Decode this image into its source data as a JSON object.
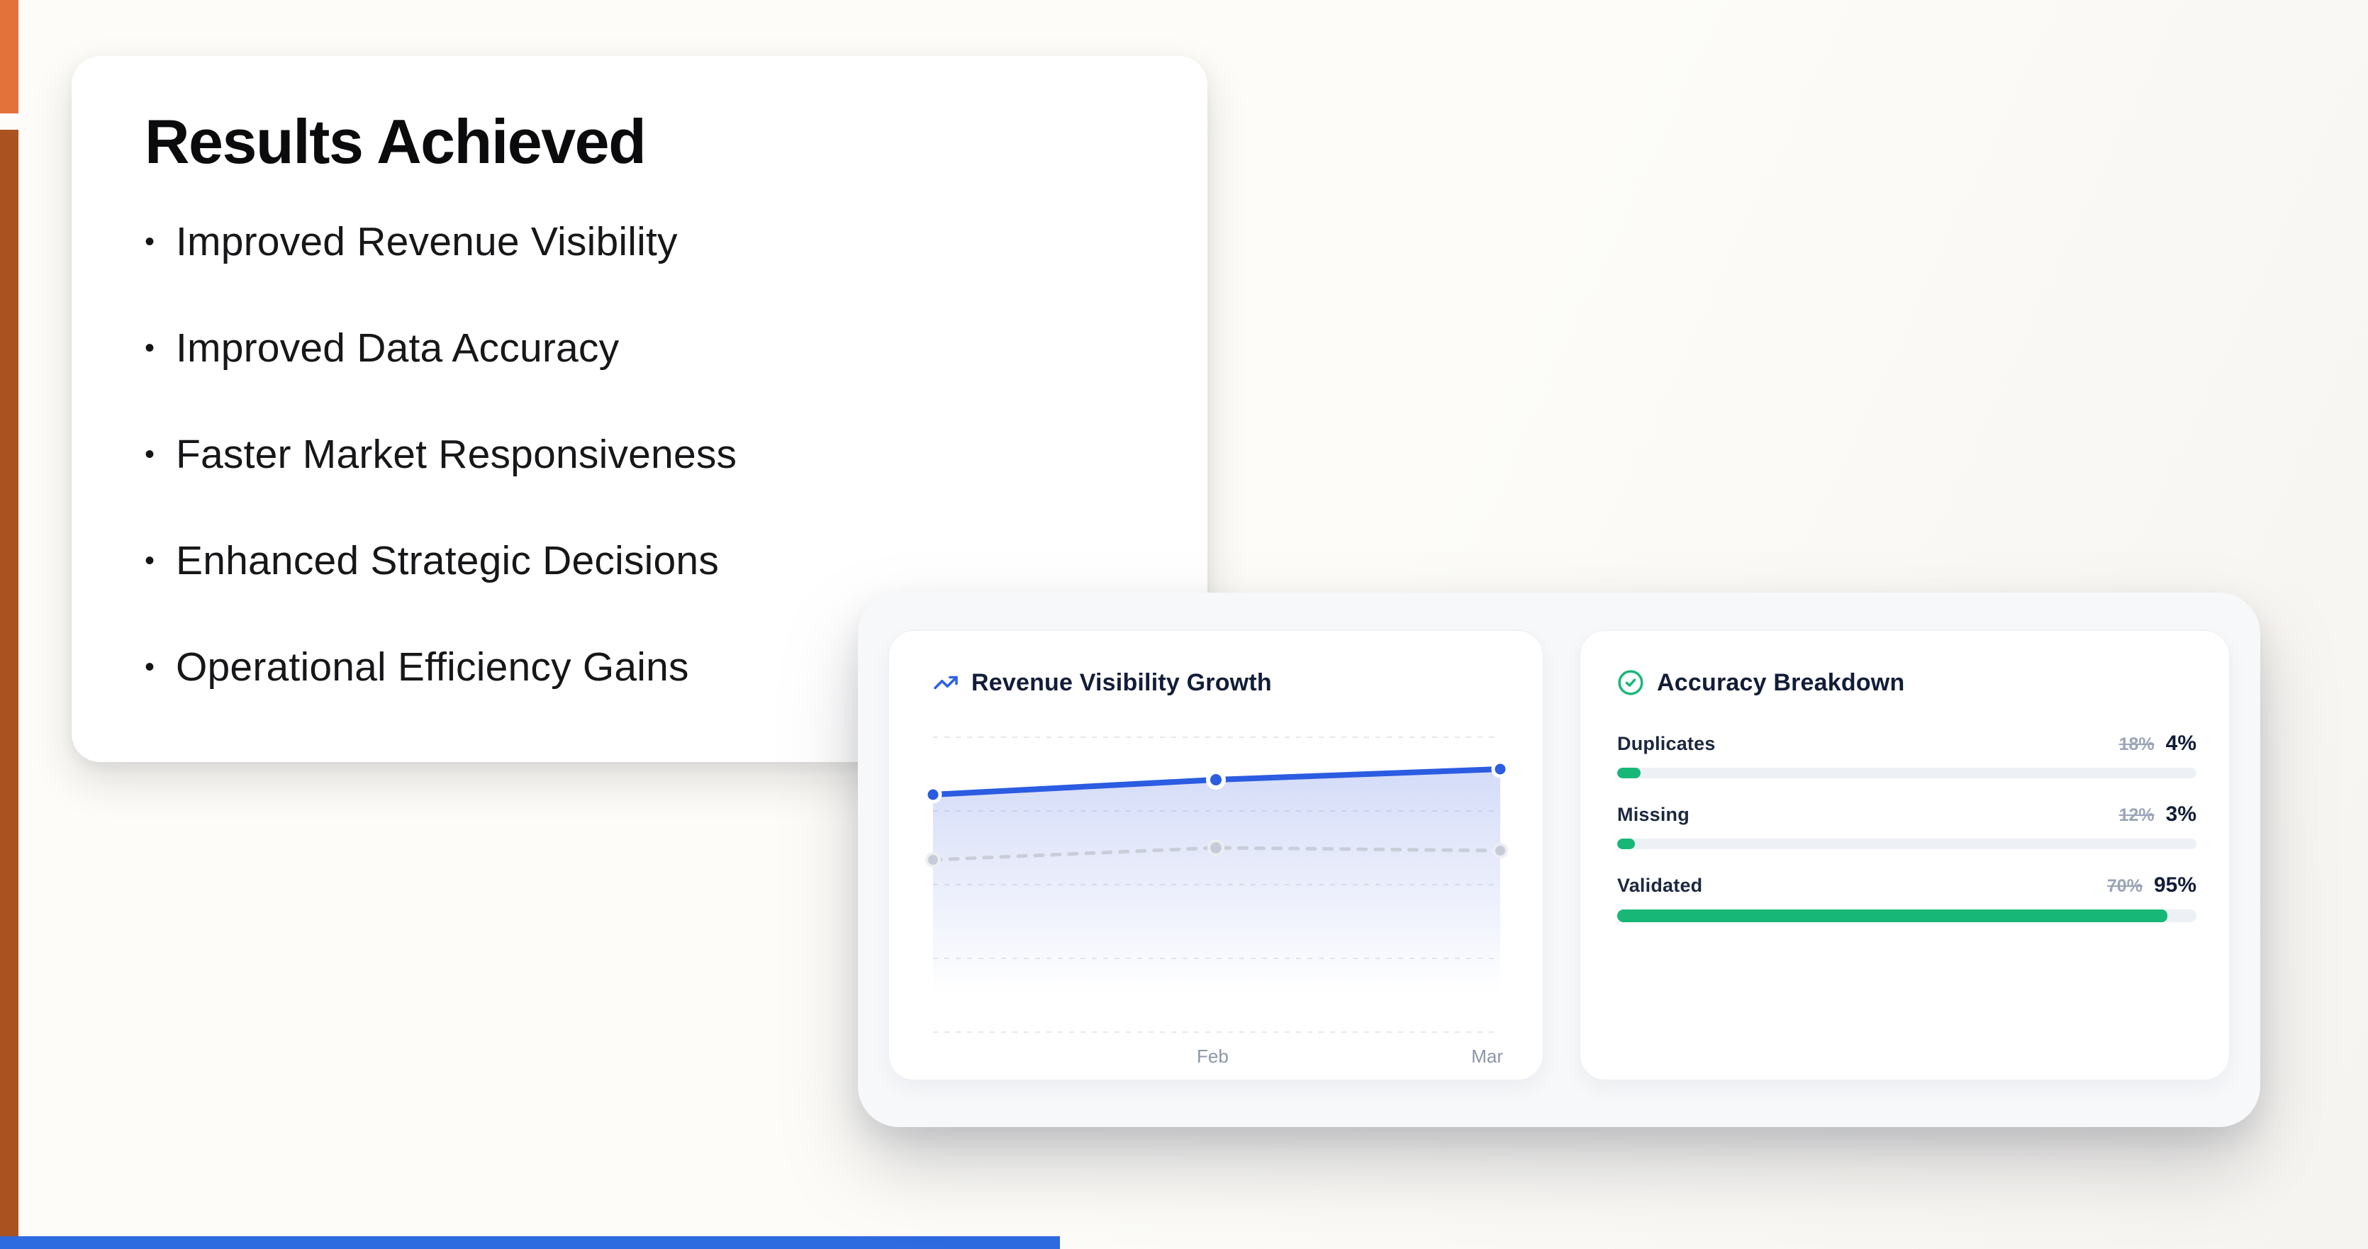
{
  "accents": {
    "top_bar_color": "#e2713a",
    "side_bar_color": "#aa5321",
    "bottom_bar_color": "#2e6ae0"
  },
  "results_card": {
    "title": "Results Achieved",
    "bullet_glyph": "•",
    "bullets": [
      "Improved Revenue Visibility",
      "Improved Data Accuracy",
      "Faster Market Responsiveness",
      "Enhanced Strategic Decisions",
      "Operational Efficiency Gains"
    ]
  },
  "dashboard": {
    "revenue_card": {
      "icon": "trending-up-icon",
      "icon_color": "#2e63e6",
      "title": "Revenue Visibility Growth",
      "x_labels": [
        "Feb",
        "Mar"
      ],
      "chart_data": {
        "type": "line",
        "x": [
          "(unlabeled)",
          "Feb",
          "Mar"
        ],
        "series": [
          {
            "name": "solid_series",
            "color": "#2b5ce1",
            "style": "solid",
            "values_est": [
              80,
              85,
              89
            ]
          },
          {
            "name": "dashed_series",
            "color": "#c8cdd8",
            "style": "dashed",
            "values_est": [
              58,
              62,
              61
            ]
          }
        ],
        "grid": "dashed-horizontal",
        "legend": "none"
      }
    },
    "accuracy_card": {
      "icon": "check-circle-icon",
      "icon_color": "#17b877",
      "title": "Accuracy Breakdown",
      "bar_color": "#17b877",
      "rows": [
        {
          "label": "Duplicates",
          "previous": "18%",
          "current": "4%",
          "percent": 4
        },
        {
          "label": "Missing",
          "previous": "12%",
          "current": "3%",
          "percent": 3
        },
        {
          "label": "Validated",
          "previous": "70%",
          "current": "95%",
          "percent": 95
        }
      ]
    }
  }
}
